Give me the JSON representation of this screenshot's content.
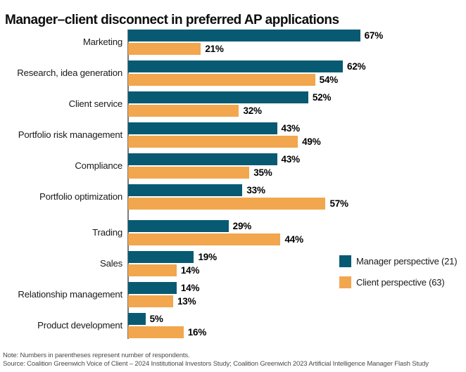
{
  "title": "Manager–client disconnect in preferred AP applications",
  "chart_data": {
    "type": "bar",
    "orientation": "horizontal",
    "categories": [
      "Marketing",
      "Research, idea generation",
      "Client service",
      "Portfolio risk management",
      "Compliance",
      "Portfolio optimization",
      "Trading",
      "Sales",
      "Relationship management",
      "Product development"
    ],
    "series": [
      {
        "name": "Manager perspective (21)",
        "color": "#075a72",
        "values": [
          67,
          62,
          52,
          43,
          43,
          33,
          29,
          19,
          14,
          5
        ]
      },
      {
        "name": "Client perspective (63)",
        "color": "#f2a64d",
        "values": [
          21,
          54,
          32,
          49,
          35,
          57,
          44,
          14,
          13,
          16
        ]
      }
    ],
    "value_suffix": "%",
    "xlim": [
      0,
      100
    ],
    "grid": "off",
    "axis_labels_shown": false,
    "data_labels": "at-bar-end",
    "legend_position": "right-middle",
    "group_separator_after_category": "Portfolio optimization"
  },
  "footer": {
    "note": "Note: Numbers in parentheses represent number of respondents.",
    "source": "Source: Coalition Greenwich Voice of Client – 2024 Institutional Investors Study; Coalition Greenwich 2023 Artificial Intelligence Manager Flash Study"
  }
}
